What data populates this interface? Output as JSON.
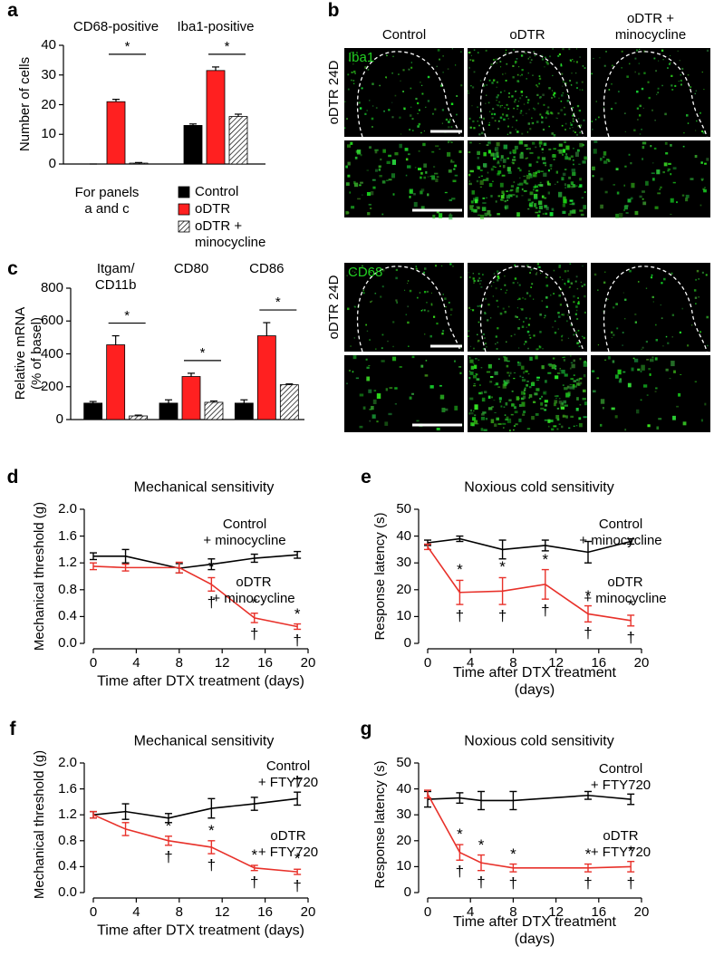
{
  "chart_data": [
    {
      "panel_label": "a",
      "type": "bar",
      "groups": [
        "CD68-positive",
        "Iba1-positive"
      ],
      "ylabel": "Number of cells",
      "ylim": [
        0,
        40
      ],
      "yticks": [
        0,
        10,
        20,
        30,
        40
      ],
      "series": [
        {
          "name": "Control",
          "color": "#000000",
          "values": [
            0,
            13
          ],
          "errors": [
            0,
            0.5
          ]
        },
        {
          "name": "oDTR",
          "color": "#ff2020",
          "values": [
            21,
            31.5
          ],
          "errors": [
            0.8,
            1.2
          ]
        },
        {
          "name": "oDTR +\nminocycline",
          "color": "#ffffff",
          "pattern": "hatch",
          "values": [
            0.3,
            16
          ],
          "errors": [
            0.2,
            0.8
          ]
        }
      ],
      "significance": [
        "*",
        "*"
      ],
      "legend_title": "For panels\na and c"
    },
    {
      "panel_label": "c",
      "type": "bar",
      "groups": [
        "Itgam/\nCD11b",
        "CD80",
        "CD86"
      ],
      "ylabel": "Relative mRNA\n(% of basel)",
      "ylim": [
        0,
        800
      ],
      "yticks": [
        0,
        200,
        400,
        600,
        800
      ],
      "series": [
        {
          "color": "#000000",
          "values": [
            100,
            100,
            100
          ],
          "errors": [
            10,
            20,
            20
          ]
        },
        {
          "color": "#ff2020",
          "values": [
            455,
            262,
            510
          ],
          "errors": [
            55,
            20,
            80
          ]
        },
        {
          "color": "#ffffff",
          "pattern": "hatch",
          "values": [
            22,
            105,
            212
          ],
          "errors": [
            5,
            8,
            5
          ]
        }
      ],
      "significance": [
        "*",
        "*",
        "*"
      ]
    },
    {
      "panel_label": "d",
      "type": "line",
      "title": "Mechanical sensitivity",
      "xlabel": "Time after DTX treatment (days)",
      "ylabel": "Mechanical threshold (g)",
      "xlim": [
        0,
        20
      ],
      "xticks": [
        0,
        4,
        8,
        12,
        16,
        20
      ],
      "ylim": [
        0,
        2
      ],
      "yticks": [
        {
          "value": 0,
          "label": "0.0"
        },
        0.4,
        0.8,
        1.2,
        1.6,
        {
          "value": 2,
          "label": "2.0"
        }
      ],
      "series": [
        {
          "name": "Control\n+ minocycline",
          "color": "#000000",
          "x": [
            0,
            3,
            8,
            11,
            15,
            19
          ],
          "values": [
            1.3,
            1.3,
            1.12,
            1.18,
            1.27,
            1.32
          ],
          "errors": [
            0.05,
            0.1,
            0.07,
            0.08,
            0.06,
            0.05
          ]
        },
        {
          "name": "oDTR\n+ minocycline",
          "color": "#e8312a",
          "x": [
            0,
            3,
            8,
            11,
            15,
            19
          ],
          "values": [
            1.15,
            1.13,
            1.13,
            0.88,
            0.38,
            0.25
          ],
          "errors": [
            0.05,
            0.05,
            0.08,
            0.1,
            0.07,
            0.04
          ],
          "labels_above": [
            null,
            null,
            null,
            "*",
            "*",
            "*"
          ],
          "labels_below": [
            null,
            null,
            null,
            "†",
            "†",
            "†"
          ]
        }
      ]
    },
    {
      "panel_label": "e",
      "type": "line",
      "title": "Noxious cold sensitivity",
      "xlabel": "Time after DTX treatment (days)",
      "ylabel": "Response latency (s)",
      "xlim": [
        0,
        20
      ],
      "xticks": [
        0,
        4,
        8,
        12,
        16,
        20
      ],
      "ylim": [
        0,
        50
      ],
      "yticks": [
        0,
        10,
        20,
        30,
        40,
        50
      ],
      "series": [
        {
          "name": "Control\n+ minocycline",
          "color": "#000000",
          "x": [
            0,
            3,
            7,
            11,
            15,
            19
          ],
          "values": [
            37.5,
            39,
            35,
            36.5,
            34,
            38
          ],
          "errors": [
            1,
            1,
            3.5,
            2,
            4,
            1
          ]
        },
        {
          "name": "oDTR\n+ minocycline",
          "color": "#e8312a",
          "x": [
            0,
            3,
            7,
            11,
            15,
            19
          ],
          "values": [
            36,
            19,
            19.5,
            22,
            11,
            8.5
          ],
          "errors": [
            1,
            4.5,
            5,
            5.5,
            3,
            2
          ],
          "labels_above": [
            null,
            "*",
            "*",
            "*",
            "*",
            "*"
          ],
          "labels_below": [
            null,
            "†",
            "†",
            "†",
            "†",
            "†"
          ]
        }
      ]
    },
    {
      "panel_label": "f",
      "type": "line",
      "title": "Mechanical sensitivity",
      "xlabel": "Time after DTX treatment (days)",
      "ylabel": "Mechanical threshold (g)",
      "xlim": [
        0,
        20
      ],
      "xticks": [
        0,
        4,
        8,
        12,
        16,
        20
      ],
      "ylim": [
        0,
        2
      ],
      "yticks": [
        {
          "value": 0,
          "label": "0.0"
        },
        0.4,
        0.8,
        1.2,
        1.6,
        {
          "value": 2,
          "label": "2.0"
        }
      ],
      "series": [
        {
          "name": "Control\n+ FTY720",
          "color": "#000000",
          "x": [
            0,
            3,
            7,
            11,
            15,
            19
          ],
          "values": [
            1.2,
            1.25,
            1.15,
            1.3,
            1.37,
            1.45
          ],
          "errors": [
            0.05,
            0.12,
            0.07,
            0.15,
            0.1,
            0.1
          ],
          "labels_above": [
            null,
            null,
            null,
            null,
            null,
            "†"
          ]
        },
        {
          "name": "oDTR\n+ FTY720",
          "color": "#e8312a",
          "x": [
            0,
            3,
            7,
            11,
            15,
            19
          ],
          "values": [
            1.2,
            0.98,
            0.8,
            0.7,
            0.38,
            0.32
          ],
          "errors": [
            0.05,
            0.1,
            0.07,
            0.1,
            0.04,
            0.04
          ],
          "labels_above": [
            null,
            null,
            "*",
            "*",
            "*",
            "*"
          ],
          "labels_below": [
            null,
            null,
            "†",
            "†",
            "†",
            "†"
          ]
        }
      ]
    },
    {
      "panel_label": "g",
      "type": "line",
      "title": "Noxious cold sensitivity",
      "xlabel": "Time after DTX treatment (days)",
      "ylabel": "Response latency (s)",
      "xlim": [
        0,
        20
      ],
      "xticks": [
        0,
        4,
        8,
        12,
        16,
        20
      ],
      "ylim": [
        0,
        50
      ],
      "yticks": [
        0,
        10,
        20,
        30,
        40,
        50
      ],
      "series": [
        {
          "name": "Control\n+ FTY720",
          "color": "#000000",
          "x": [
            0,
            3,
            5,
            8,
            15,
            19
          ],
          "values": [
            36,
            36.5,
            35.5,
            35.5,
            37.5,
            36
          ],
          "errors": [
            3,
            2,
            3.5,
            3.5,
            1.5,
            2
          ]
        },
        {
          "name": "oDTR\n+ FTY720",
          "color": "#e8312a",
          "x": [
            0,
            3,
            5,
            8,
            15,
            19
          ],
          "values": [
            38,
            15.5,
            11.5,
            9.5,
            9.5,
            10
          ],
          "errors": [
            1.5,
            3,
            3,
            1.5,
            1.5,
            2
          ],
          "labels_above": [
            null,
            "*",
            "*",
            "*",
            "*",
            "*"
          ],
          "labels_below": [
            null,
            "†",
            "†",
            "†",
            "†",
            "†"
          ]
        }
      ]
    }
  ],
  "image_panel": {
    "panel_label": "b",
    "columns": [
      "Control",
      "oDTR",
      "oDTR +\nminocycline"
    ],
    "rows": [
      {
        "label": "oDTR 24D",
        "stain": "Iba1"
      },
      {
        "label": "oDTR 24D",
        "stain": "CD68"
      }
    ]
  }
}
